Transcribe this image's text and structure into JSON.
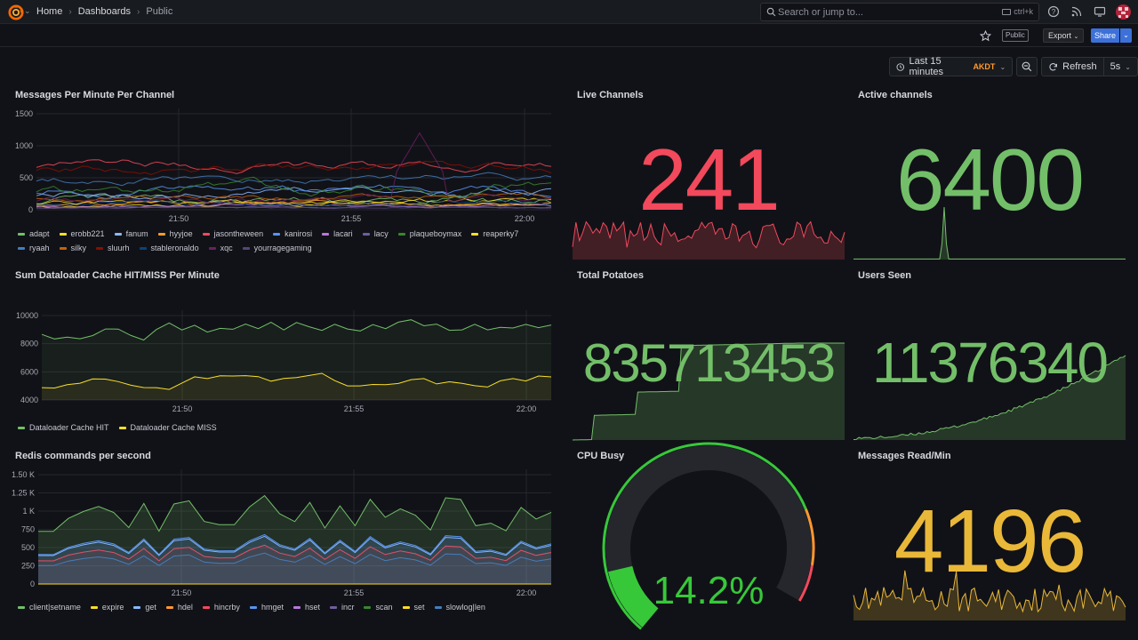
{
  "nav": {
    "breadcrumbs": [
      {
        "label": "Home"
      },
      {
        "label": "Dashboards"
      },
      {
        "label": "Public"
      }
    ],
    "search_placeholder": "Search or jump to...",
    "search_shortcut": "ctrl+k"
  },
  "toolbar": {
    "public_badge": "Public",
    "export_label": "Export",
    "share_label": "Share",
    "time_range": "Last 15 minutes",
    "timezone": "AKDT",
    "refresh_label": "Refresh",
    "refresh_interval": "5s"
  },
  "colors": {
    "background": "#111217",
    "red": "#f2495c",
    "green": "#73bf69",
    "yellow": "#fade2a",
    "gold": "#eab839",
    "blue": "#5794f2"
  },
  "panels": {
    "messages_per_minute": {
      "title": "Messages Per Minute Per Channel",
      "yticks": [
        "1500",
        "1000",
        "500",
        "0"
      ],
      "xticks": [
        "21:50",
        "21:55",
        "22:00"
      ],
      "legend": [
        {
          "name": "adapt",
          "color": "#73bf69"
        },
        {
          "name": "erobb221",
          "color": "#fade2a"
        },
        {
          "name": "fanum",
          "color": "#8ab8ff"
        },
        {
          "name": "hyyjoe",
          "color": "#ff9830"
        },
        {
          "name": "jasontheween",
          "color": "#f2495c"
        },
        {
          "name": "kanirosi",
          "color": "#5794f2"
        },
        {
          "name": "lacari",
          "color": "#b877d9"
        },
        {
          "name": "lacy",
          "color": "#705da0"
        },
        {
          "name": "plaqueboymax",
          "color": "#37872d"
        },
        {
          "name": "reaperky7",
          "color": "#fade2a"
        },
        {
          "name": "ryaah",
          "color": "#447ebc"
        },
        {
          "name": "silky",
          "color": "#c4620a"
        },
        {
          "name": "sluurh",
          "color": "#890f02"
        },
        {
          "name": "stableronaldo",
          "color": "#0a437c"
        },
        {
          "name": "xqc",
          "color": "#6d1f62"
        },
        {
          "name": "yourragegaming",
          "color": "#584477"
        }
      ]
    },
    "live_channels": {
      "title": "Live Channels",
      "value": "241",
      "color": "#f2495c"
    },
    "active_channels": {
      "title": "Active channels",
      "value": "6400",
      "color": "#73bf69"
    },
    "dataloader": {
      "title": "Sum Dataloader Cache HIT/MISS Per Minute",
      "yticks": [
        "10000",
        "8000",
        "6000",
        "4000"
      ],
      "xticks": [
        "21:50",
        "21:55",
        "22:00"
      ],
      "legend": [
        {
          "name": "Dataloader Cache HIT",
          "color": "#73bf69"
        },
        {
          "name": "Dataloader Cache MISS",
          "color": "#fade2a"
        }
      ]
    },
    "total_potatoes": {
      "title": "Total Potatoes",
      "value": "835713453",
      "color": "#73bf69"
    },
    "users_seen": {
      "title": "Users Seen",
      "value": "11376340",
      "color": "#73bf69"
    },
    "redis": {
      "title": "Redis commands per second",
      "yticks": [
        "1.50 K",
        "1.25 K",
        "1 K",
        "750",
        "500",
        "250",
        "0"
      ],
      "xticks": [
        "21:50",
        "21:55",
        "22:00"
      ],
      "legend": [
        {
          "name": "client|setname",
          "color": "#73bf69"
        },
        {
          "name": "expire",
          "color": "#fade2a"
        },
        {
          "name": "get",
          "color": "#8ab8ff"
        },
        {
          "name": "hdel",
          "color": "#ff9830"
        },
        {
          "name": "hincrby",
          "color": "#f2495c"
        },
        {
          "name": "hmget",
          "color": "#5794f2"
        },
        {
          "name": "hset",
          "color": "#b877d9"
        },
        {
          "name": "incr",
          "color": "#705da0"
        },
        {
          "name": "scan",
          "color": "#37872d"
        },
        {
          "name": "set",
          "color": "#fade2a"
        },
        {
          "name": "slowlog|len",
          "color": "#447ebc"
        }
      ]
    },
    "cpu_busy": {
      "title": "CPU Busy",
      "value": "14.2%",
      "percent": 14.2,
      "color": "#37c83a"
    },
    "messages_read": {
      "title": "Messages Read/Min",
      "value": "4196",
      "color": "#eab839"
    }
  }
}
